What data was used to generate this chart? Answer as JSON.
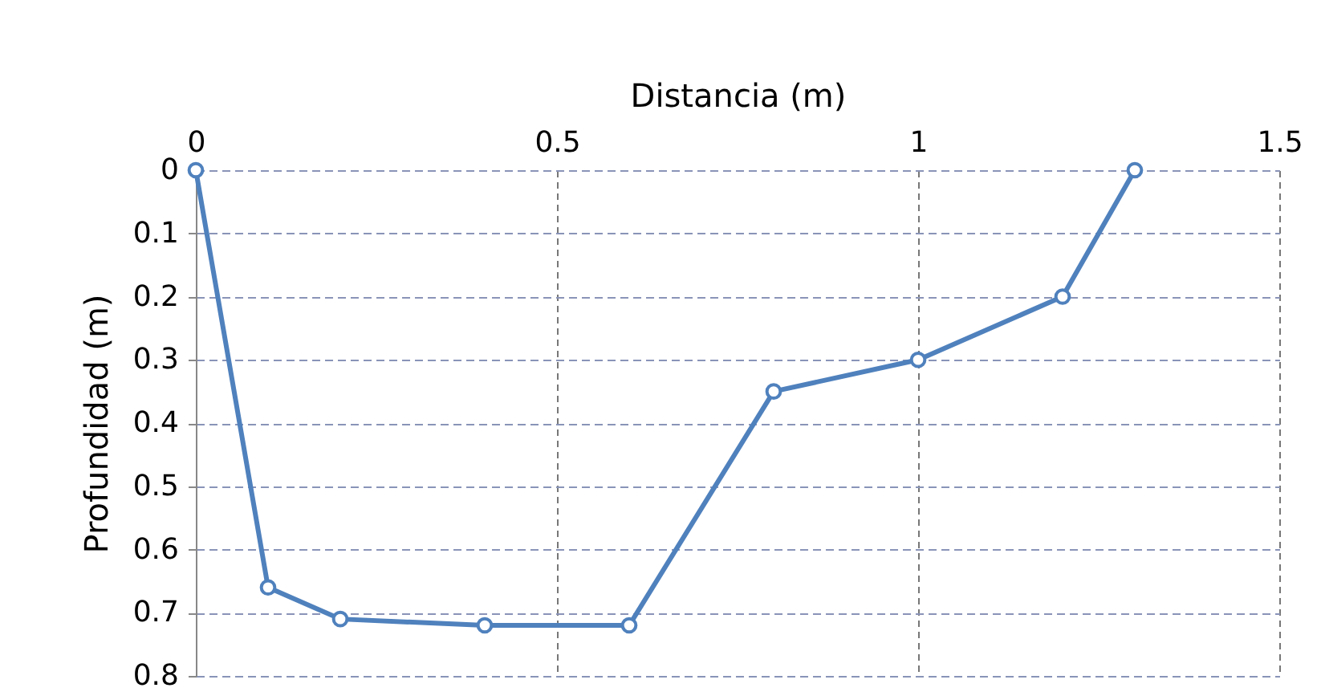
{
  "chart_data": {
    "type": "line",
    "xlabel": "Distancia (m)",
    "ylabel": "Profundidad (m)",
    "x": [
      0,
      0.1,
      0.2,
      0.4,
      0.6,
      0.8,
      1.0,
      1.2,
      1.3
    ],
    "series": [
      {
        "color": "#4f81bd",
        "values": [
          0,
          0.66,
          0.71,
          0.72,
          0.72,
          0.35,
          0.3,
          0.2,
          0
        ]
      }
    ],
    "xlim": [
      0,
      1.5
    ],
    "xticks": [
      0,
      0.5,
      1,
      1.5
    ],
    "ylim": [
      0.8,
      0
    ],
    "yticks": [
      0,
      0.1,
      0.2,
      0.3,
      0.4,
      0.5,
      0.6,
      0.7,
      0.8
    ],
    "grid": true,
    "marker": "circle",
    "line_style": "solid",
    "legend": false
  }
}
